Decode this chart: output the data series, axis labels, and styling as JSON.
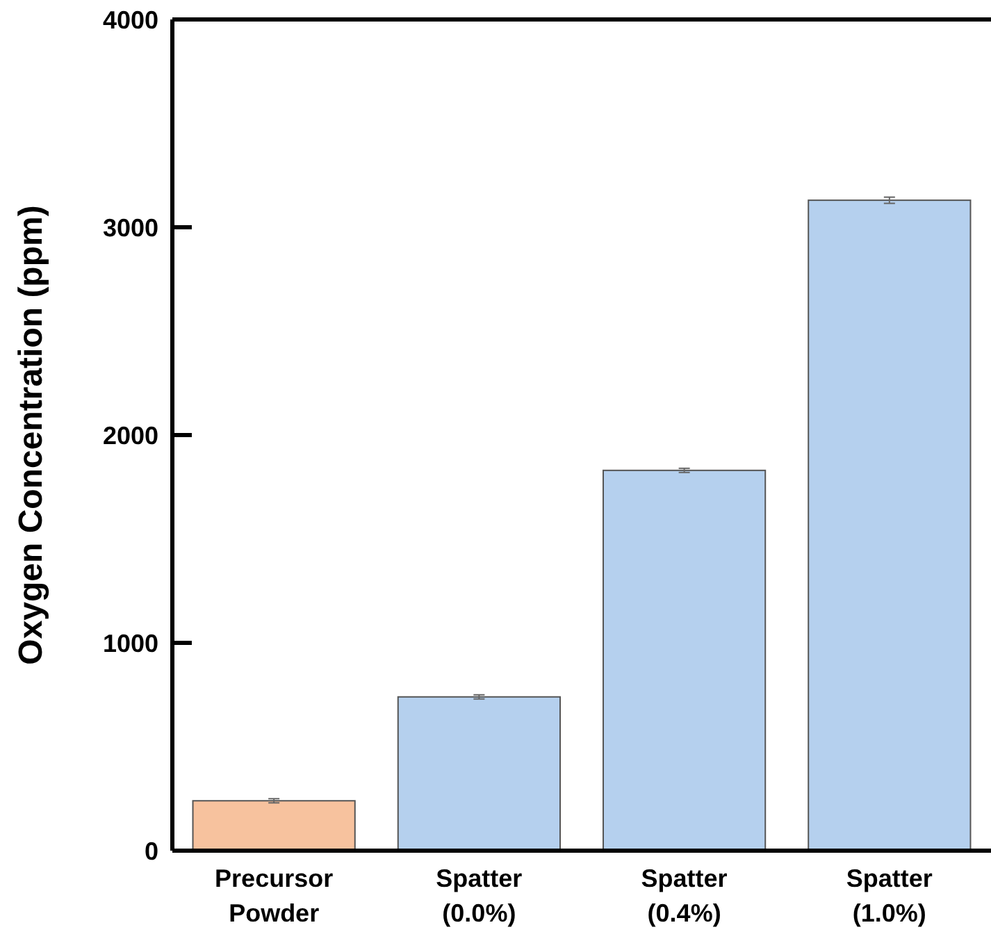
{
  "chart_data": {
    "type": "bar",
    "ylabel": "Oxygen Concentration (ppm)",
    "categories": [
      "Precursor Powder",
      "Spatter (0.0%)",
      "Spatter (0.4%)",
      "Spatter (1.0%)"
    ],
    "values": [
      240,
      740,
      1830,
      3130
    ],
    "errors": [
      10,
      10,
      10,
      15
    ],
    "colors": [
      "#f7c29e",
      "#b5d0ee",
      "#b5d0ee",
      "#b5d0ee"
    ],
    "ylim": [
      0,
      4000
    ],
    "yticks": [
      0,
      1000,
      2000,
      3000,
      4000
    ],
    "grid": false
  }
}
